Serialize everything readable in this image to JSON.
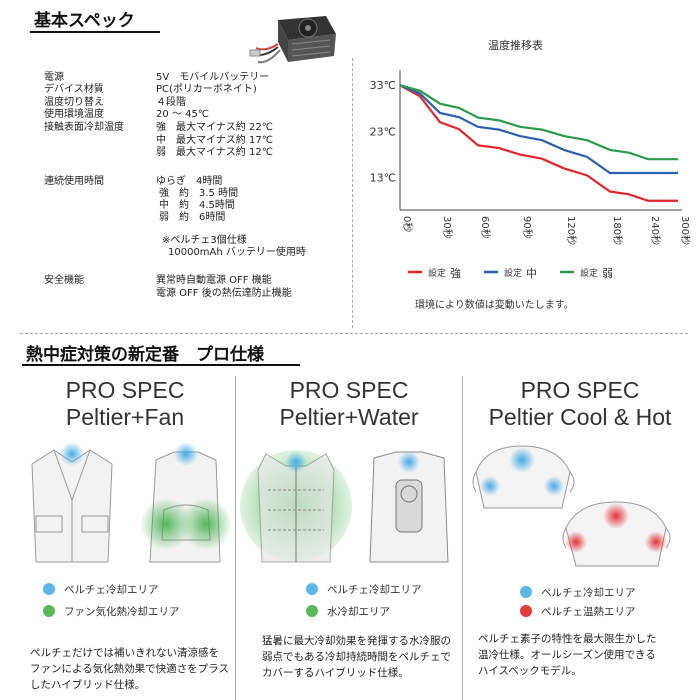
{
  "section1_title": "基本スペック",
  "spec_rows": [
    {
      "label": "電源",
      "value": "5V　モバイルバッテリー"
    },
    {
      "label": "デバイス材質",
      "value": "PC(ポリカーボネイト)"
    },
    {
      "label": "温度切り替え",
      "value": "４段階"
    },
    {
      "label": "使用環境温度",
      "value": "20 ～ 45℃"
    },
    {
      "label": "接触表面冷却温度",
      "value": "強　最大マイナス約 22℃"
    },
    {
      "label": "",
      "value": "中　最大マイナス約 17℃"
    },
    {
      "label": "",
      "value": "弱　最大マイナス約 12℃"
    },
    {
      "label": "連続使用時間",
      "value": "ゆらぎ　4時間"
    },
    {
      "label": "",
      "value": "強　約　3.5 時間"
    },
    {
      "label": "",
      "value": "中　約　4.5時間"
    },
    {
      "label": "",
      "value": "弱　約　6時間"
    },
    {
      "label": "",
      "value": "※ペルチェ3個仕様"
    },
    {
      "label": "",
      "value": "10000mAh バッテリー使用時"
    },
    {
      "label": "安全機能",
      "value": "異常時自動電源 OFF 機能"
    },
    {
      "label": "",
      "value": "電源 OFF 後の熱伝達防止機能"
    }
  ],
  "chart_title": "温度推移表",
  "chart_note": "環境により数値は変動いたします。",
  "chart_data": {
    "type": "line",
    "title": "温度推移表",
    "y_ticks": [
      "33℃",
      "23℃",
      "13℃"
    ],
    "y_tick_values": [
      33,
      23,
      13
    ],
    "x_ticks": [
      "0秒",
      "30秒",
      "60秒",
      "90秒",
      "120秒",
      "180秒",
      "240秒",
      "300秒"
    ],
    "ylim": [
      6,
      35
    ],
    "series": [
      {
        "name": "強",
        "color": "#e0262b",
        "values": [
          33,
          25,
          20,
          18,
          15,
          10,
          8,
          8
        ]
      },
      {
        "name": "中",
        "color": "#2c5fb0",
        "values": [
          33,
          27,
          24,
          22,
          19,
          14,
          14,
          14
        ]
      },
      {
        "name": "弱",
        "color": "#2a9a4a",
        "values": [
          33,
          29,
          26,
          24,
          22,
          19,
          17,
          17
        ]
      }
    ]
  },
  "legend_prefix": "設定",
  "section2_title": "熱中症対策の新定番　プロ仕様",
  "columns": [
    {
      "title1": "PRO SPEC",
      "title2": "Peltier+Fan",
      "legend": [
        {
          "label": "ペルチェ冷却エリア",
          "color": "#5cb6e6"
        },
        {
          "label": "ファン気化熱冷却エリア",
          "color": "#57b957"
        }
      ],
      "desc": [
        "ペルチェだけでは補いきれない清涼感を",
        "ファンによる気化熱効果で快適さをプラス",
        "したハイブリッド仕様。"
      ]
    },
    {
      "title1": "PRO SPEC",
      "title2": "Peltier+Water",
      "legend": [
        {
          "label": "ペルチェ冷却エリア",
          "color": "#5cb6e6"
        },
        {
          "label": "水冷却エリア",
          "color": "#57b957"
        }
      ],
      "desc": [
        "猛暑に最大冷却効果を発揮する水冷服の",
        "弱点でもある冷却持続時間をペルチェで",
        "カバーするハイブリッド仕様。"
      ]
    },
    {
      "title1": "PRO SPEC",
      "title2": "Peltier Cool & Hot",
      "legend": [
        {
          "label": "ペルチェ冷却エリア",
          "color": "#5cb6e6"
        },
        {
          "label": "ペルチェ温熱エリア",
          "color": "#e33a3a"
        }
      ],
      "desc": [
        "ペルチェ素子の特性を最大限生かした",
        "温冷仕様。オールシーズン使用できる",
        "ハイスペックモデル。"
      ]
    }
  ]
}
